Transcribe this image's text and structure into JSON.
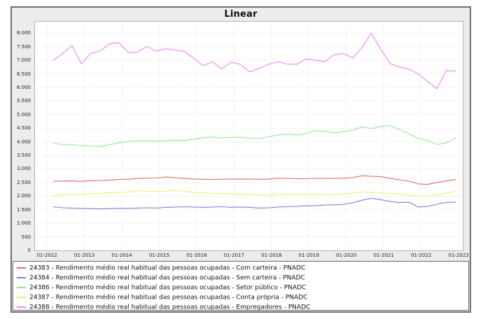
{
  "chart_data": {
    "type": "line",
    "title": "Linear",
    "xlabel": "",
    "ylabel": "",
    "xlim": [
      2011.68,
      2023.11
    ],
    "ylim": [
      0,
      8420
    ],
    "grid": "dotted",
    "legend_position": "bottom",
    "grid_h_color": "#dadada",
    "grid_v_color": "#e4d8d8",
    "x_ticks": [
      {
        "value": 2012,
        "label": "01-2012"
      },
      {
        "value": 2013,
        "label": "01-2013"
      },
      {
        "value": 2014,
        "label": "01-2014"
      },
      {
        "value": 2015,
        "label": "01-2015"
      },
      {
        "value": 2016,
        "label": "01-2016"
      },
      {
        "value": 2017,
        "label": "01-2017"
      },
      {
        "value": 2018,
        "label": "01-2018"
      },
      {
        "value": 2019,
        "label": "01-2019"
      },
      {
        "value": 2020,
        "label": "01-2020"
      },
      {
        "value": 2021,
        "label": "01-2021"
      },
      {
        "value": 2022,
        "label": "01-2022"
      },
      {
        "value": 2023,
        "label": "01-2023"
      }
    ],
    "y_ticks": [
      {
        "value": 0,
        "label": "0"
      },
      {
        "value": 500,
        "label": "500"
      },
      {
        "value": 1000,
        "label": "1.000"
      },
      {
        "value": 1500,
        "label": "1.500"
      },
      {
        "value": 2000,
        "label": "2.000"
      },
      {
        "value": 2500,
        "label": "2.500"
      },
      {
        "value": 3000,
        "label": "3.000"
      },
      {
        "value": 3500,
        "label": "3.500"
      },
      {
        "value": 4000,
        "label": "4.000"
      },
      {
        "value": 4500,
        "label": "4.500"
      },
      {
        "value": 5000,
        "label": "5.000"
      },
      {
        "value": 5500,
        "label": "5.500"
      },
      {
        "value": 6000,
        "label": "6.000"
      },
      {
        "value": 6500,
        "label": "6.500"
      },
      {
        "value": 7000,
        "label": "7.000"
      },
      {
        "value": 7500,
        "label": "7.500"
      },
      {
        "value": 8000,
        "label": "8.000"
      }
    ],
    "x": [
      2012.17,
      2012.42,
      2012.67,
      2012.92,
      2013.17,
      2013.42,
      2013.67,
      2013.92,
      2014.17,
      2014.42,
      2014.67,
      2014.92,
      2015.17,
      2015.42,
      2015.67,
      2015.92,
      2016.17,
      2016.42,
      2016.67,
      2016.92,
      2017.17,
      2017.42,
      2017.67,
      2017.92,
      2018.17,
      2018.42,
      2018.67,
      2018.92,
      2019.17,
      2019.42,
      2019.67,
      2019.92,
      2020.17,
      2020.42,
      2020.67,
      2020.92,
      2021.17,
      2021.42,
      2021.67,
      2021.92,
      2022.17,
      2022.42,
      2022.67,
      2022.92
    ],
    "series": [
      {
        "id": "24383",
        "name": "24383 - Rendimento médio real habitual das pessoas ocupadas - Com carteira - PNADC",
        "color": "#dd6a6a",
        "values": [
          2550,
          2555,
          2560,
          2545,
          2570,
          2575,
          2590,
          2610,
          2620,
          2650,
          2660,
          2665,
          2700,
          2680,
          2650,
          2630,
          2620,
          2610,
          2620,
          2625,
          2630,
          2625,
          2620,
          2620,
          2660,
          2650,
          2640,
          2640,
          2650,
          2650,
          2650,
          2660,
          2680,
          2750,
          2730,
          2720,
          2650,
          2600,
          2550,
          2450,
          2430,
          2500,
          2560,
          2610
        ]
      },
      {
        "id": "24384",
        "name": "24384 - Rendimento médio real habitual das pessoas ocupadas - Sem carteira - PNADC",
        "color": "#8080d0",
        "values": [
          1610,
          1570,
          1560,
          1550,
          1540,
          1530,
          1540,
          1550,
          1550,
          1560,
          1570,
          1560,
          1590,
          1600,
          1610,
          1600,
          1590,
          1600,
          1610,
          1590,
          1600,
          1590,
          1560,
          1570,
          1600,
          1610,
          1620,
          1640,
          1650,
          1670,
          1680,
          1700,
          1750,
          1850,
          1920,
          1870,
          1800,
          1760,
          1780,
          1600,
          1620,
          1700,
          1770,
          1780
        ]
      },
      {
        "id": "24386",
        "name": "24386 - Rendimento médio real habitual das pessoas ocupadas - Setor público - PNADC",
        "color": "#98e898",
        "values": [
          3950,
          3900,
          3890,
          3860,
          3840,
          3830,
          3890,
          3960,
          4010,
          4030,
          4040,
          4020,
          4040,
          4060,
          4050,
          4090,
          4150,
          4180,
          4140,
          4160,
          4170,
          4140,
          4120,
          4180,
          4250,
          4280,
          4250,
          4290,
          4410,
          4380,
          4330,
          4370,
          4420,
          4550,
          4480,
          4560,
          4600,
          4450,
          4300,
          4120,
          4050,
          3900,
          3950,
          4150
        ]
      },
      {
        "id": "24387",
        "name": "24387 - Rendimento médio real habitual das pessoas ocupadas - Conta própria - PNADC",
        "color": "#f0f06e",
        "values": [
          2020,
          2050,
          2060,
          2070,
          2090,
          2100,
          2120,
          2130,
          2150,
          2200,
          2180,
          2170,
          2180,
          2210,
          2180,
          2140,
          2120,
          2100,
          2090,
          2080,
          2070,
          2060,
          2050,
          2040,
          2060,
          2070,
          2080,
          2060,
          2070,
          2060,
          2070,
          2080,
          2100,
          2160,
          2140,
          2110,
          2090,
          2080,
          2040,
          2000,
          2010,
          2050,
          2110,
          2170
        ]
      },
      {
        "id": "24388",
        "name": "24388 - Rendimento médio real habitual das pessoas ocupadas - Empregadores - PNADC",
        "color": "#ee85ee",
        "values": [
          7000,
          7250,
          7540,
          6870,
          7250,
          7340,
          7600,
          7650,
          7280,
          7300,
          7510,
          7330,
          7420,
          7380,
          7330,
          7080,
          6800,
          6950,
          6680,
          6930,
          6850,
          6570,
          6700,
          6850,
          6950,
          6860,
          6850,
          7050,
          7000,
          6950,
          7200,
          7250,
          7090,
          7470,
          8000,
          7400,
          6880,
          6750,
          6680,
          6500,
          6220,
          5950,
          6620,
          6600
        ]
      }
    ]
  }
}
